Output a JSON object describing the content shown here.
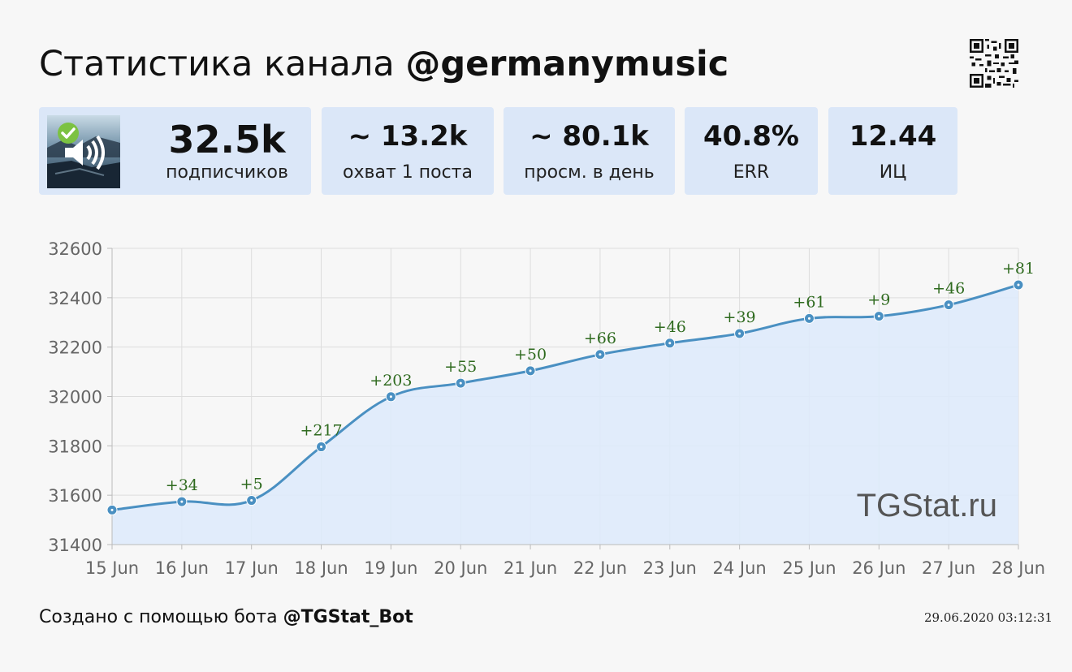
{
  "header": {
    "title_prefix": "Статистика канала ",
    "channel": "@germanymusic"
  },
  "stats": [
    {
      "value": "32.5k",
      "label": "подписчиков"
    },
    {
      "value": "~ 13.2k",
      "label": "охват 1 поста"
    },
    {
      "value": "~ 80.1k",
      "label": "просм. в день"
    },
    {
      "value": "40.8%",
      "label": "ERR"
    },
    {
      "value": "12.44",
      "label": "ИЦ"
    }
  ],
  "colors": {
    "card_bg": "#dbe7f8",
    "line": "#4a90c2",
    "area": "#deeafb",
    "label_green": "#2e6a1e",
    "grid": "#dddddd"
  },
  "chart_data": {
    "type": "area",
    "title": "",
    "xlabel": "",
    "ylabel": "",
    "categories": [
      "15 Jun",
      "16 Jun",
      "17 Jun",
      "18 Jun",
      "19 Jun",
      "20 Jun",
      "21 Jun",
      "22 Jun",
      "23 Jun",
      "24 Jun",
      "25 Jun",
      "26 Jun",
      "27 Jun",
      "28 Jun"
    ],
    "series": [
      {
        "values": [
          31540,
          31574,
          31579,
          31796,
          31999,
          32054,
          32104,
          32170,
          32216,
          32255,
          32316,
          32325,
          32371,
          32452
        ],
        "labels": [
          "",
          "+34",
          "+5",
          "+217",
          "+203",
          "+55",
          "+50",
          "+66",
          "+46",
          "+39",
          "+61",
          "+9",
          "+46",
          "+81"
        ]
      }
    ],
    "yticks": [
      31400,
      31600,
      31800,
      32000,
      32200,
      32400,
      32600
    ],
    "ylim": [
      31400,
      32600
    ],
    "grid": true,
    "legend": "none",
    "watermark": "TGStat.ru"
  },
  "footer": {
    "prefix": "Создано с помощью бота ",
    "bot": "@TGStat_Bot",
    "timestamp": "29.06.2020 03:12:31"
  },
  "icons": {
    "avatar": "channel-avatar-speaker-icon",
    "verified": "verified-check-icon",
    "qr": "qr-code-icon"
  }
}
